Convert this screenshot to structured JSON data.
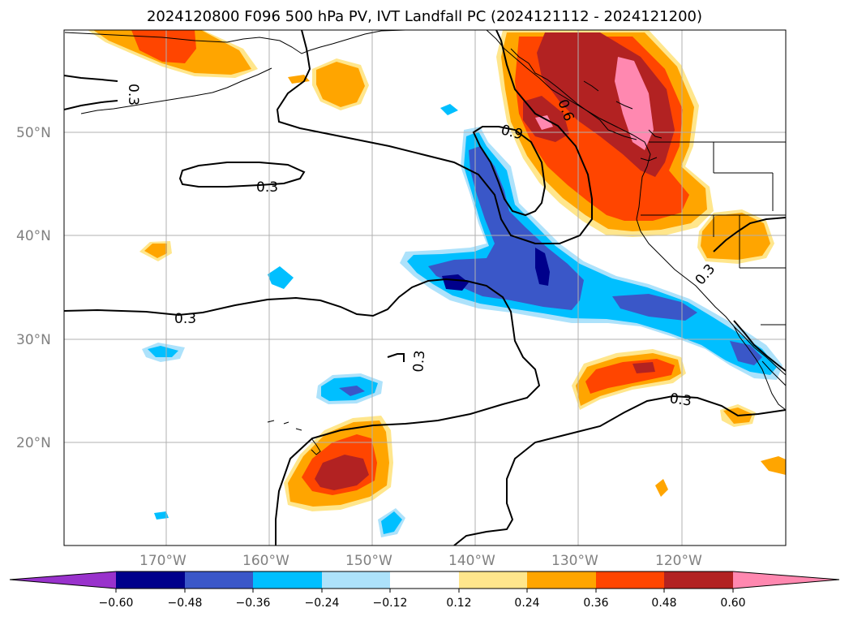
{
  "title": "2024120800 F096 500 hPa PV, IVT Landfall PC (2024121112 - 2024121200)",
  "colors": {
    "neg_extreme": "#9932cc",
    "neg_060": "#00008b",
    "neg_048": "#3a57c8",
    "neg_036": "#00bfff",
    "neg_024": "#ade2fb",
    "neutral": "#ffffff",
    "pos_012": "#ffe68c",
    "pos_024": "#ffa500",
    "pos_036": "#ff4500",
    "pos_048": "#b22222",
    "pos_060": "#ff88b0",
    "grid": "#b0b0b0",
    "coast": "#000000",
    "contour": "#000000"
  },
  "lat_labels": [
    "50°N",
    "40°N",
    "30°N",
    "20°N"
  ],
  "lon_labels": [
    "170°W",
    "160°W",
    "150°W",
    "140°W",
    "130°W",
    "120°W"
  ],
  "colorbar": {
    "ticks": [
      "−0.60",
      "−0.48",
      "−0.36",
      "−0.24",
      "−0.12",
      "0.12",
      "0.24",
      "0.36",
      "0.48",
      "0.60"
    ]
  },
  "contour_labels": {
    "c1": "0.3",
    "c2": "0.3",
    "c3": "0.3",
    "c4": "0.3",
    "c5": "0.3",
    "c6": "0.3",
    "c7": "0.9",
    "c8": "0.6"
  }
}
